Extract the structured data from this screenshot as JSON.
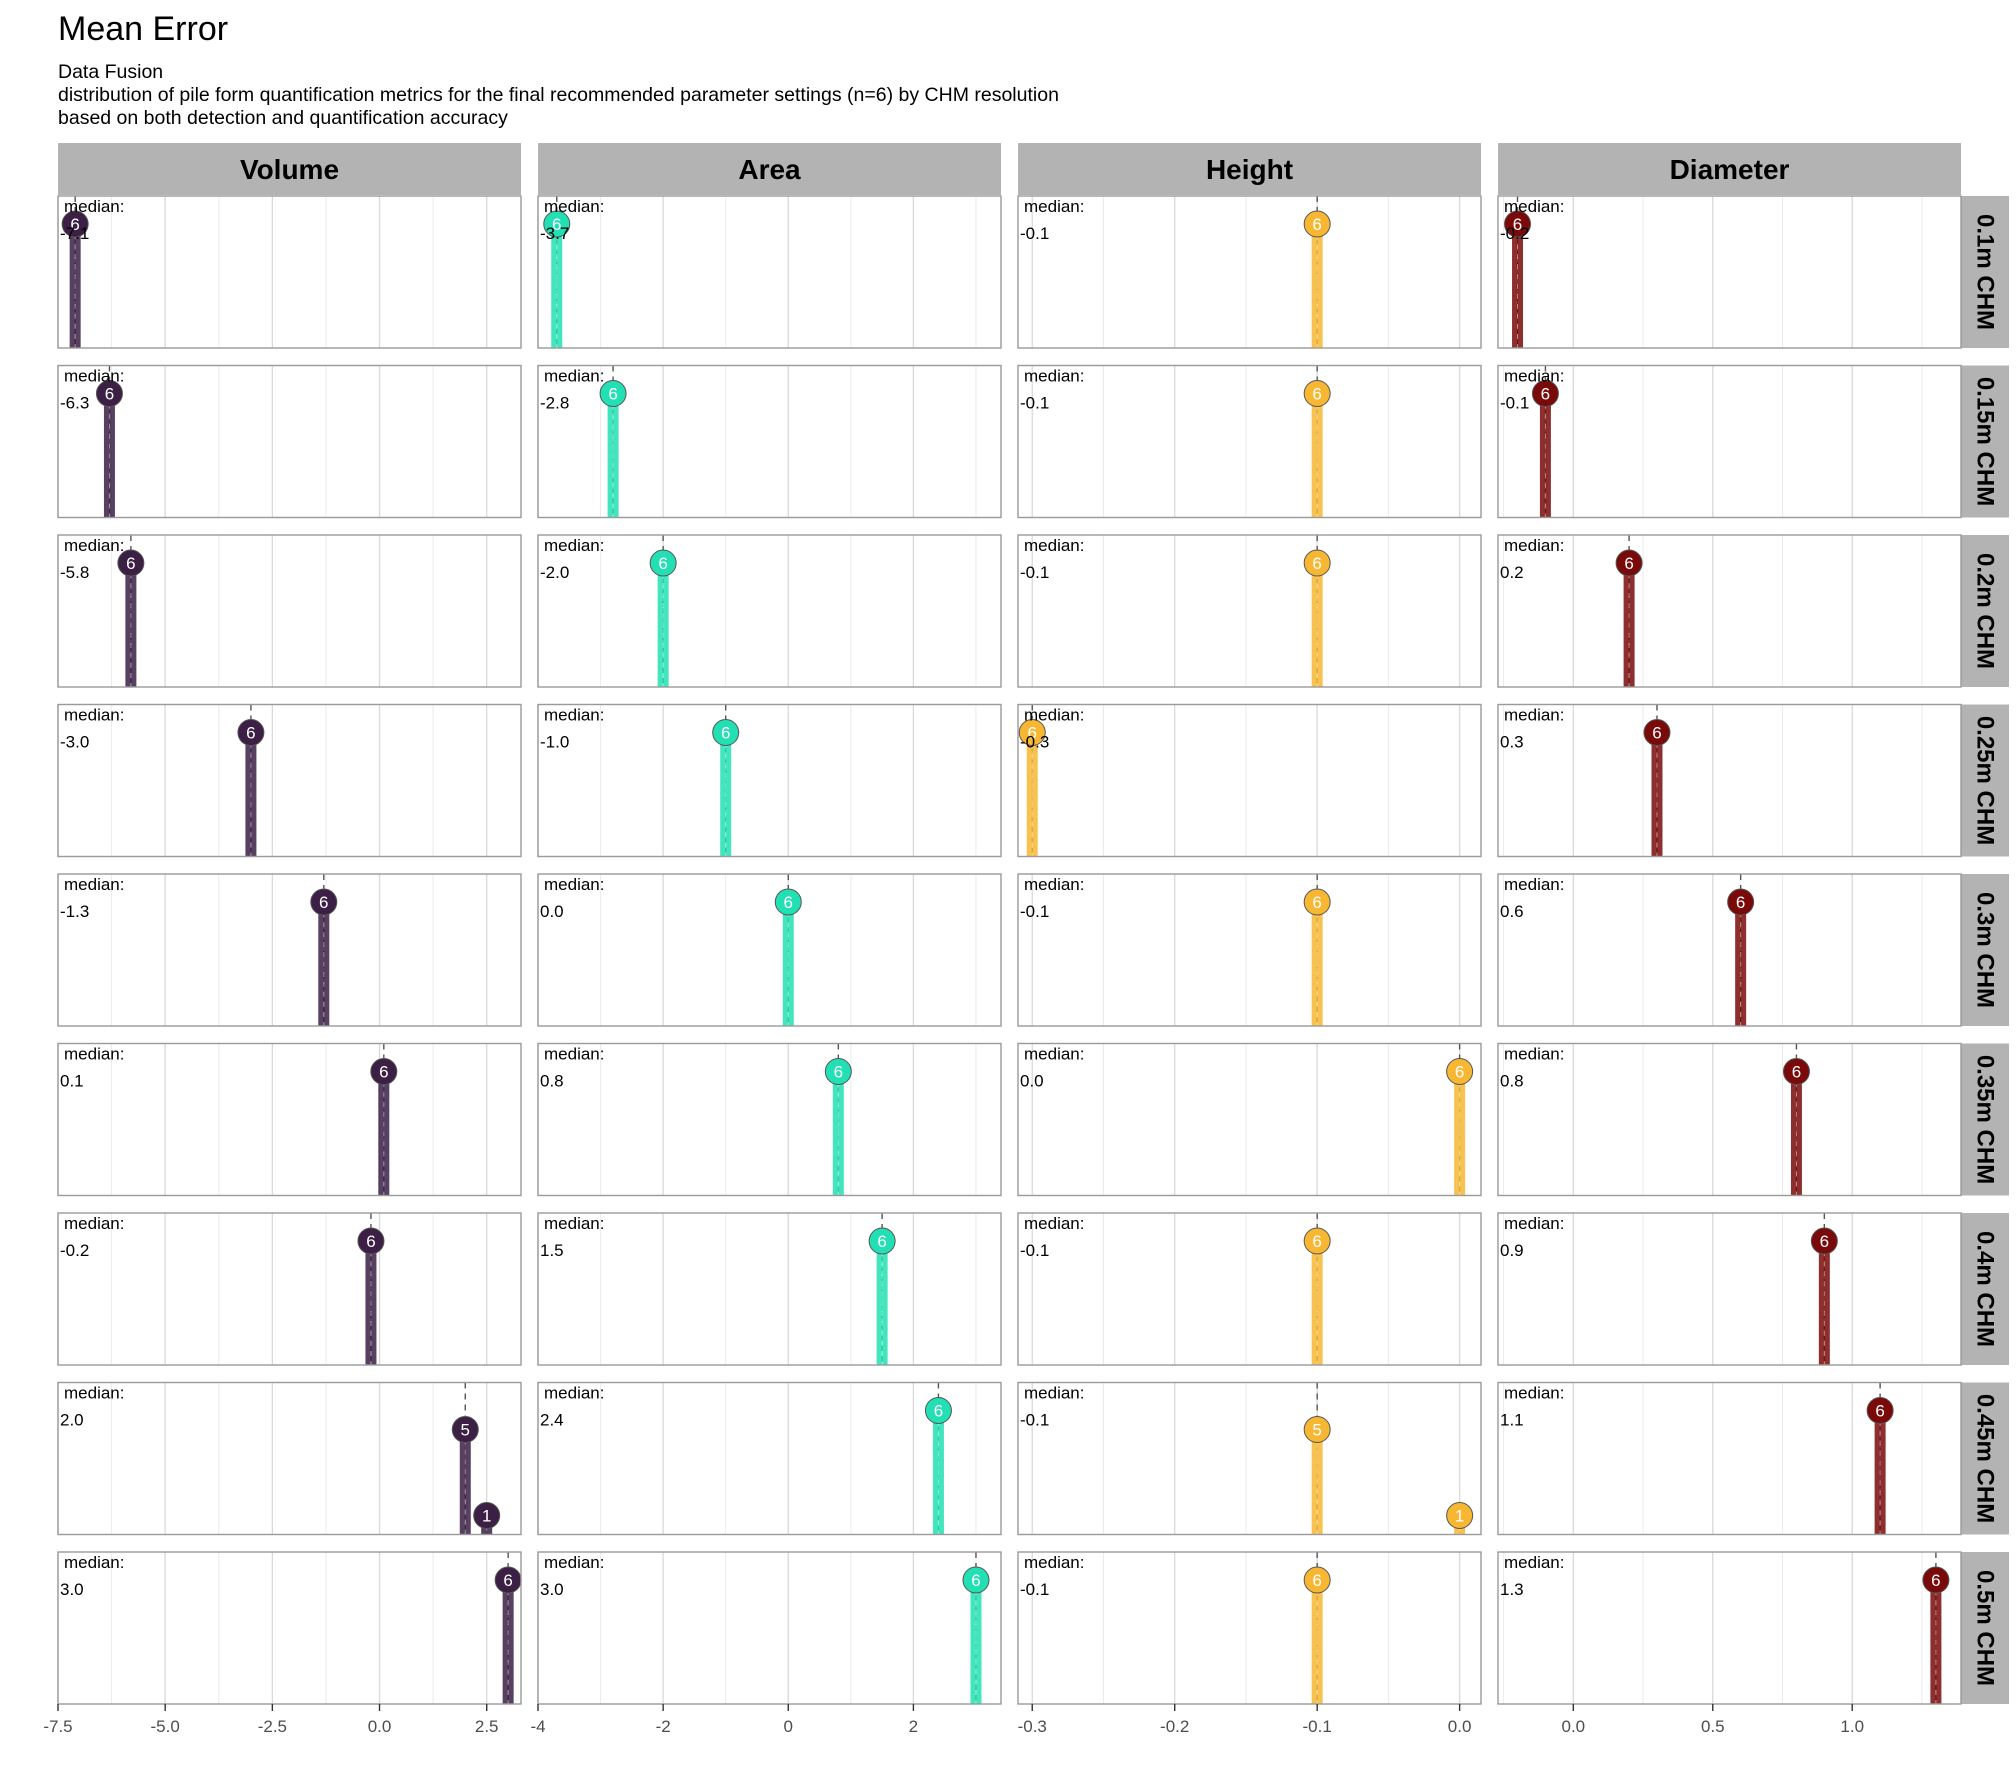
{
  "title": "Mean Error",
  "subtitle_lines": [
    "Data Fusion",
    "distribution of pile form quantification metrics for the final recommended parameter settings (n=6) by CHM resolution",
    "based on both detection and quantification accuracy"
  ],
  "chart_data": {
    "type": "lollipop",
    "median_label": "median:",
    "columns": [
      {
        "name": "Volume",
        "color": "#3b1f44",
        "xlim": [
          -7.5,
          3.3
        ],
        "ticks": [
          -7.5,
          -5.0,
          -2.5,
          0.0,
          2.5
        ],
        "tick_labels": [
          "-7.5",
          "-5.0",
          "-2.5",
          "0.0",
          "2.5"
        ]
      },
      {
        "name": "Area",
        "color": "#22e0b3",
        "xlim": [
          -4.0,
          3.4
        ],
        "ticks": [
          -4,
          -2,
          0,
          2
        ],
        "tick_labels": [
          "-4",
          "-2",
          "0",
          "2"
        ]
      },
      {
        "name": "Height",
        "color": "#f7b733",
        "xlim": [
          -0.31,
          0.015
        ],
        "ticks": [
          -0.3,
          -0.2,
          -0.1,
          0.0
        ],
        "tick_labels": [
          "-0.3",
          "-0.2",
          "-0.1",
          "0.0"
        ]
      },
      {
        "name": "Diameter",
        "color": "#7a0a0a",
        "xlim": [
          -0.27,
          1.39
        ],
        "ticks": [
          0.0,
          0.5,
          1.0
        ],
        "tick_labels": [
          "0.0",
          "0.5",
          "1.0"
        ]
      }
    ],
    "rows": [
      {
        "name": "0.1m CHM",
        "cells": [
          {
            "median": "-7.1",
            "median_value": -7.1,
            "points": [
              {
                "x": -7.1,
                "n": 6
              }
            ]
          },
          {
            "median": "-3.7",
            "median_value": -3.7,
            "points": [
              {
                "x": -3.7,
                "n": 6
              }
            ]
          },
          {
            "median": "-0.1",
            "median_value": -0.1,
            "points": [
              {
                "x": -0.1,
                "n": 6
              }
            ]
          },
          {
            "median": "-0.2",
            "median_value": -0.2,
            "points": [
              {
                "x": -0.2,
                "n": 6
              }
            ]
          }
        ]
      },
      {
        "name": "0.15m CHM",
        "cells": [
          {
            "median": "-6.3",
            "median_value": -6.3,
            "points": [
              {
                "x": -6.3,
                "n": 6
              }
            ]
          },
          {
            "median": "-2.8",
            "median_value": -2.8,
            "points": [
              {
                "x": -2.8,
                "n": 6
              }
            ]
          },
          {
            "median": "-0.1",
            "median_value": -0.1,
            "points": [
              {
                "x": -0.1,
                "n": 6
              }
            ]
          },
          {
            "median": "-0.1",
            "median_value": -0.1,
            "points": [
              {
                "x": -0.1,
                "n": 6
              }
            ]
          }
        ]
      },
      {
        "name": "0.2m CHM",
        "cells": [
          {
            "median": "-5.8",
            "median_value": -5.8,
            "points": [
              {
                "x": -5.8,
                "n": 6
              }
            ]
          },
          {
            "median": "-2.0",
            "median_value": -2.0,
            "points": [
              {
                "x": -2.0,
                "n": 6
              }
            ]
          },
          {
            "median": "-0.1",
            "median_value": -0.1,
            "points": [
              {
                "x": -0.1,
                "n": 6
              }
            ]
          },
          {
            "median": "0.2",
            "median_value": 0.2,
            "points": [
              {
                "x": 0.2,
                "n": 6
              }
            ]
          }
        ]
      },
      {
        "name": "0.25m CHM",
        "cells": [
          {
            "median": "-3.0",
            "median_value": -3.0,
            "points": [
              {
                "x": -3.0,
                "n": 6
              }
            ]
          },
          {
            "median": "-1.0",
            "median_value": -1.0,
            "points": [
              {
                "x": -1.0,
                "n": 6
              }
            ]
          },
          {
            "median": "-0.3",
            "median_value": -0.3,
            "points": [
              {
                "x": -0.3,
                "n": 6
              }
            ]
          },
          {
            "median": "0.3",
            "median_value": 0.3,
            "points": [
              {
                "x": 0.3,
                "n": 6
              }
            ]
          }
        ]
      },
      {
        "name": "0.3m CHM",
        "cells": [
          {
            "median": "-1.3",
            "median_value": -1.3,
            "points": [
              {
                "x": -1.3,
                "n": 6
              }
            ]
          },
          {
            "median": "0.0",
            "median_value": 0.0,
            "points": [
              {
                "x": 0.0,
                "n": 6
              }
            ]
          },
          {
            "median": "-0.1",
            "median_value": -0.1,
            "points": [
              {
                "x": -0.1,
                "n": 6
              }
            ]
          },
          {
            "median": "0.6",
            "median_value": 0.6,
            "points": [
              {
                "x": 0.6,
                "n": 6
              }
            ]
          }
        ]
      },
      {
        "name": "0.35m CHM",
        "cells": [
          {
            "median": "0.1",
            "median_value": 0.1,
            "points": [
              {
                "x": 0.1,
                "n": 6
              }
            ]
          },
          {
            "median": "0.8",
            "median_value": 0.8,
            "points": [
              {
                "x": 0.8,
                "n": 6
              }
            ]
          },
          {
            "median": "0.0",
            "median_value": 0.0,
            "points": [
              {
                "x": 0.0,
                "n": 6
              }
            ]
          },
          {
            "median": "0.8",
            "median_value": 0.8,
            "points": [
              {
                "x": 0.8,
                "n": 6
              }
            ]
          }
        ]
      },
      {
        "name": "0.4m CHM",
        "cells": [
          {
            "median": "-0.2",
            "median_value": -0.2,
            "points": [
              {
                "x": -0.2,
                "n": 6
              }
            ]
          },
          {
            "median": "1.5",
            "median_value": 1.5,
            "points": [
              {
                "x": 1.5,
                "n": 6
              }
            ]
          },
          {
            "median": "-0.1",
            "median_value": -0.1,
            "points": [
              {
                "x": -0.1,
                "n": 6
              }
            ]
          },
          {
            "median": "0.9",
            "median_value": 0.9,
            "points": [
              {
                "x": 0.9,
                "n": 6
              }
            ]
          }
        ]
      },
      {
        "name": "0.45m CHM",
        "cells": [
          {
            "median": "2.0",
            "median_value": 2.0,
            "points": [
              {
                "x": 2.0,
                "n": 5
              },
              {
                "x": 2.5,
                "n": 1
              }
            ]
          },
          {
            "median": "2.4",
            "median_value": 2.4,
            "points": [
              {
                "x": 2.4,
                "n": 6
              }
            ]
          },
          {
            "median": "-0.1",
            "median_value": -0.1,
            "points": [
              {
                "x": -0.1,
                "n": 5
              },
              {
                "x": 0.0,
                "n": 1
              }
            ]
          },
          {
            "median": "1.1",
            "median_value": 1.1,
            "points": [
              {
                "x": 1.1,
                "n": 6
              }
            ]
          }
        ]
      },
      {
        "name": "0.5m CHM",
        "cells": [
          {
            "median": "3.0",
            "median_value": 3.0,
            "points": [
              {
                "x": 3.0,
                "n": 6
              }
            ]
          },
          {
            "median": "3.0",
            "median_value": 3.0,
            "points": [
              {
                "x": 3.0,
                "n": 6
              }
            ]
          },
          {
            "median": "-0.1",
            "median_value": -0.1,
            "points": [
              {
                "x": -0.1,
                "n": 6
              }
            ]
          },
          {
            "median": "1.3",
            "median_value": 1.3,
            "points": [
              {
                "x": 1.3,
                "n": 6
              }
            ]
          }
        ]
      }
    ]
  }
}
